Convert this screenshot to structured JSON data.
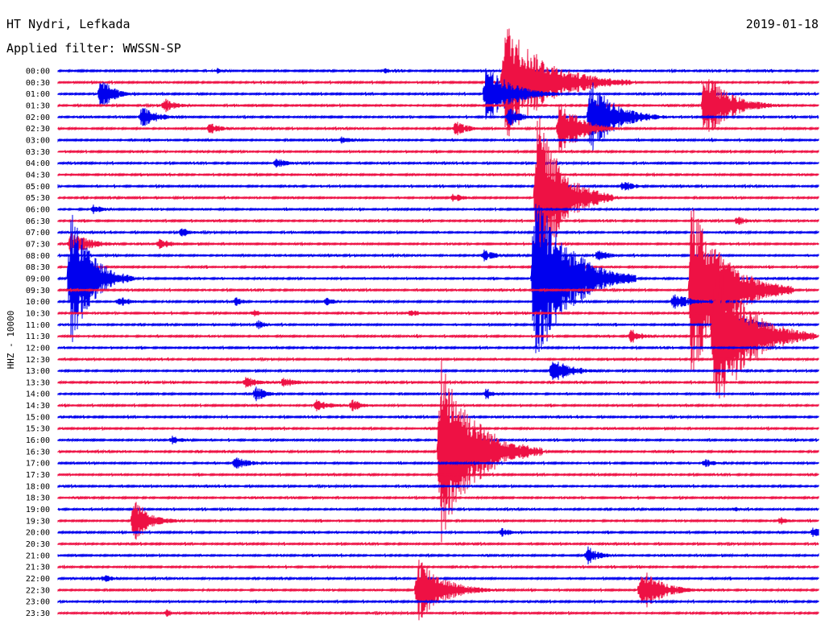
{
  "header": {
    "station": "HT Nydri, Lefkada",
    "filter": "Applied filter: WWSSN-SP",
    "date": "2019-01-18"
  },
  "chart_data": {
    "type": "line",
    "title": "HT Nydri, Lefkada",
    "subtitle": "Applied filter: WWSSN-SP",
    "ylabel": "HHZ - 10000",
    "grid": false,
    "colors": {
      "blue": "#0000ee",
      "red": "#ee1144"
    },
    "rows": [
      "00:00",
      "00:30",
      "01:00",
      "01:30",
      "02:00",
      "02:30",
      "03:00",
      "03:30",
      "04:00",
      "04:30",
      "05:00",
      "05:30",
      "06:00",
      "06:30",
      "07:00",
      "07:30",
      "08:00",
      "08:30",
      "09:00",
      "09:30",
      "10:00",
      "10:30",
      "11:00",
      "11:30",
      "12:00",
      "12:30",
      "13:00",
      "13:30",
      "14:00",
      "14:30",
      "15:00",
      "15:30",
      "16:00",
      "16:30",
      "17:00",
      "17:30",
      "18:00",
      "18:30",
      "19:00",
      "19:30",
      "20:00",
      "20:30",
      "21:00",
      "21:30",
      "22:00",
      "22:30",
      "23:00",
      "23:30"
    ],
    "trace_minutes": 30,
    "events": [
      {
        "row": 0,
        "minute": 6.3,
        "amp": 4,
        "dur": 1.2
      },
      {
        "row": 0,
        "minute": 12.9,
        "amp": 4,
        "dur": 1.0
      },
      {
        "row": 1,
        "minute": 17.6,
        "amp": 80,
        "dur": 5.0
      },
      {
        "row": 2,
        "minute": 1.7,
        "amp": 22,
        "dur": 1.5
      },
      {
        "row": 2,
        "minute": 16.9,
        "amp": 40,
        "dur": 3.0
      },
      {
        "row": 3,
        "minute": 4.2,
        "amp": 10,
        "dur": 1.5
      },
      {
        "row": 3,
        "minute": 25.5,
        "amp": 45,
        "dur": 3.0
      },
      {
        "row": 4,
        "minute": 3.3,
        "amp": 14,
        "dur": 2.0
      },
      {
        "row": 4,
        "minute": 17.8,
        "amp": 12,
        "dur": 1.5
      },
      {
        "row": 4,
        "minute": 21.0,
        "amp": 48,
        "dur": 3.0
      },
      {
        "row": 5,
        "minute": 6.0,
        "amp": 8,
        "dur": 1.5
      },
      {
        "row": 5,
        "minute": 15.7,
        "amp": 10,
        "dur": 1.5
      },
      {
        "row": 5,
        "minute": 19.8,
        "amp": 38,
        "dur": 2.5
      },
      {
        "row": 6,
        "minute": 11.2,
        "amp": 5,
        "dur": 1.5
      },
      {
        "row": 8,
        "minute": 8.6,
        "amp": 7,
        "dur": 1.5
      },
      {
        "row": 10,
        "minute": 22.3,
        "amp": 8,
        "dur": 1.5
      },
      {
        "row": 11,
        "minute": 15.6,
        "amp": 6,
        "dur": 1.5
      },
      {
        "row": 11,
        "minute": 18.9,
        "amp": 112,
        "dur": 3.0
      },
      {
        "row": 12,
        "minute": 1.4,
        "amp": 6,
        "dur": 1.5
      },
      {
        "row": 13,
        "minute": 26.8,
        "amp": 6,
        "dur": 1.5
      },
      {
        "row": 14,
        "minute": 4.9,
        "amp": 8,
        "dur": 1.0
      },
      {
        "row": 15,
        "minute": 0.5,
        "amp": 16,
        "dur": 2.5
      },
      {
        "row": 15,
        "minute": 4.0,
        "amp": 8,
        "dur": 1.5
      },
      {
        "row": 16,
        "minute": 16.8,
        "amp": 8,
        "dur": 1.5
      },
      {
        "row": 16,
        "minute": 21.3,
        "amp": 8,
        "dur": 1.5
      },
      {
        "row": 18,
        "minute": 0.5,
        "amp": 90,
        "dur": 2.5
      },
      {
        "row": 18,
        "minute": 18.8,
        "amp": 120,
        "dur": 4.0
      },
      {
        "row": 19,
        "minute": 25.0,
        "amp": 118,
        "dur": 4.0
      },
      {
        "row": 20,
        "minute": 2.4,
        "amp": 8,
        "dur": 1.5
      },
      {
        "row": 20,
        "minute": 7.0,
        "amp": 6,
        "dur": 1.0
      },
      {
        "row": 20,
        "minute": 10.6,
        "amp": 6,
        "dur": 1.0
      },
      {
        "row": 20,
        "minute": 24.3,
        "amp": 12,
        "dur": 2.0
      },
      {
        "row": 21,
        "minute": 7.7,
        "amp": 5,
        "dur": 1.0
      },
      {
        "row": 21,
        "minute": 13.9,
        "amp": 5,
        "dur": 1.5
      },
      {
        "row": 22,
        "minute": 7.9,
        "amp": 6,
        "dur": 1.0
      },
      {
        "row": 22,
        "minute": 26.9,
        "amp": 14,
        "dur": 2.0
      },
      {
        "row": 23,
        "minute": 22.6,
        "amp": 10,
        "dur": 1.5
      },
      {
        "row": 23,
        "minute": 25.9,
        "amp": 110,
        "dur": 4.0
      },
      {
        "row": 26,
        "minute": 19.5,
        "amp": 16,
        "dur": 2.5
      },
      {
        "row": 27,
        "minute": 7.4,
        "amp": 8,
        "dur": 2.0
      },
      {
        "row": 27,
        "minute": 8.9,
        "amp": 8,
        "dur": 1.5
      },
      {
        "row": 28,
        "minute": 7.8,
        "amp": 10,
        "dur": 1.5
      },
      {
        "row": 28,
        "minute": 16.9,
        "amp": 8,
        "dur": 1.0
      },
      {
        "row": 29,
        "minute": 10.2,
        "amp": 8,
        "dur": 2.0
      },
      {
        "row": 29,
        "minute": 11.6,
        "amp": 8,
        "dur": 1.5
      },
      {
        "row": 32,
        "minute": 4.5,
        "amp": 6,
        "dur": 1.5
      },
      {
        "row": 33,
        "minute": 15.1,
        "amp": 125,
        "dur": 4.0
      },
      {
        "row": 34,
        "minute": 7.0,
        "amp": 8,
        "dur": 2.0
      },
      {
        "row": 34,
        "minute": 25.5,
        "amp": 6,
        "dur": 1.5
      },
      {
        "row": 38,
        "minute": 26.7,
        "amp": 4,
        "dur": 1.0
      },
      {
        "row": 39,
        "minute": 3.0,
        "amp": 30,
        "dur": 2.0
      },
      {
        "row": 39,
        "minute": 28.5,
        "amp": 6,
        "dur": 1.0
      },
      {
        "row": 40,
        "minute": 17.5,
        "amp": 6,
        "dur": 1.5
      },
      {
        "row": 40,
        "minute": 29.8,
        "amp": 8,
        "dur": 1.0
      },
      {
        "row": 42,
        "minute": 20.9,
        "amp": 12,
        "dur": 1.5
      },
      {
        "row": 44,
        "minute": 1.8,
        "amp": 5,
        "dur": 1.5
      },
      {
        "row": 45,
        "minute": 14.2,
        "amp": 45,
        "dur": 3.0
      },
      {
        "row": 45,
        "minute": 23.0,
        "amp": 30,
        "dur": 2.5
      },
      {
        "row": 47,
        "minute": 4.3,
        "amp": 5,
        "dur": 1.0
      }
    ]
  }
}
